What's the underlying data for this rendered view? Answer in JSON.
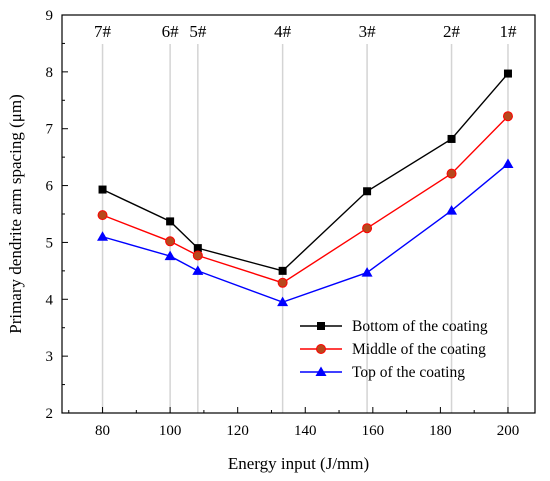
{
  "chart_data": {
    "type": "line",
    "xlabel": "Energy input (J/mm)",
    "ylabel": "Primary dendrite arm spacing (μm)",
    "xlim": [
      68,
      208
    ],
    "ylim": [
      2,
      9
    ],
    "xticks": [
      80,
      100,
      120,
      140,
      160,
      180,
      200
    ],
    "yticks": [
      2,
      3,
      4,
      5,
      6,
      7,
      8,
      9
    ],
    "grid": false,
    "legend_position": "bottom-right",
    "reference_lines": [
      {
        "x": 80,
        "label": "7#"
      },
      {
        "x": 100,
        "label": "6#"
      },
      {
        "x": 108.2,
        "label": "5#"
      },
      {
        "x": 133.3,
        "label": "4#"
      },
      {
        "x": 158.3,
        "label": "3#"
      },
      {
        "x": 183.3,
        "label": "2#"
      },
      {
        "x": 200,
        "label": "1#"
      }
    ],
    "x": [
      80,
      100,
      108.2,
      133.3,
      158.3,
      183.3,
      200
    ],
    "series": [
      {
        "name": "Bottom of the coating",
        "color": "#000000",
        "marker": "square",
        "values": [
          5.93,
          5.37,
          4.9,
          4.5,
          5.9,
          6.82,
          7.97
        ]
      },
      {
        "name": "Middle of the coating",
        "color": "#ff0000",
        "marker": "circle",
        "marker_fill": "#b8481c",
        "values": [
          5.48,
          5.02,
          4.77,
          4.29,
          5.25,
          6.21,
          7.22
        ]
      },
      {
        "name": "Top of the coating",
        "color": "#0000ff",
        "marker": "triangle",
        "values": [
          5.1,
          4.76,
          4.5,
          3.95,
          4.47,
          5.56,
          6.38
        ]
      }
    ]
  }
}
